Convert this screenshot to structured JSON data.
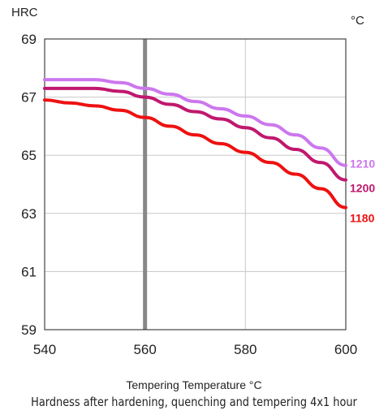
{
  "chart_data": {
    "type": "line",
    "y_unit": "HRC",
    "series_unit": "°C",
    "xlabel": "Tempering Temperature °C",
    "caption": "Hardness after hardening, quenching and tempering  4x1 hour",
    "xlim": [
      540,
      600
    ],
    "ylim": [
      59,
      69
    ],
    "x_ticks": [
      540,
      560,
      580,
      600
    ],
    "y_ticks": [
      59,
      61,
      63,
      65,
      67,
      69
    ],
    "highlight_x": 560,
    "grid": true,
    "series": [
      {
        "name": "1210",
        "color": "#cc77ee",
        "x": [
          540,
          545,
          550,
          555,
          560,
          565,
          570,
          575,
          580,
          585,
          590,
          595,
          600
        ],
        "y": [
          67.6,
          67.6,
          67.6,
          67.5,
          67.3,
          67.1,
          66.85,
          66.6,
          66.35,
          66.05,
          65.7,
          65.25,
          64.65
        ]
      },
      {
        "name": "1200",
        "color": "#c0186e",
        "x": [
          540,
          545,
          550,
          555,
          560,
          565,
          570,
          575,
          580,
          585,
          590,
          595,
          600
        ],
        "y": [
          67.3,
          67.3,
          67.3,
          67.2,
          67.0,
          66.75,
          66.5,
          66.25,
          65.95,
          65.6,
          65.2,
          64.75,
          64.15
        ]
      },
      {
        "name": "1180",
        "color": "#ee1111",
        "x": [
          540,
          545,
          550,
          555,
          560,
          565,
          570,
          575,
          580,
          585,
          590,
          595,
          600
        ],
        "y": [
          66.9,
          66.8,
          66.7,
          66.55,
          66.3,
          66.0,
          65.7,
          65.4,
          65.1,
          64.75,
          64.35,
          63.85,
          63.2
        ]
      }
    ]
  }
}
